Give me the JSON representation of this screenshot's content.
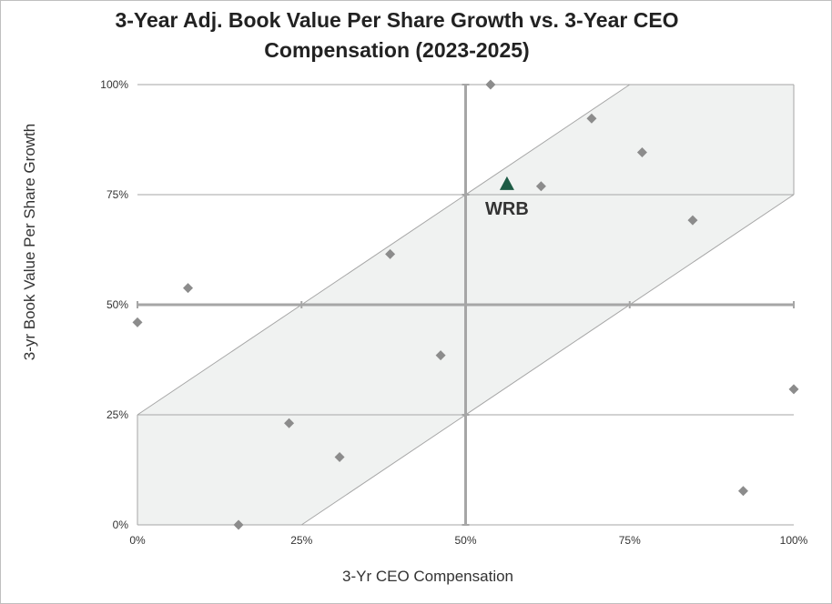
{
  "chart_data": {
    "type": "scatter",
    "title": "3-Year Adj. Book Value Per Share Growth vs. 3-Year CEO Compensation (2023-2025)",
    "xlabel": "3-Yr CEO Compensation",
    "ylabel": "3-yr Book Value Per Share Growth",
    "xlim": [
      0,
      100
    ],
    "ylim": [
      0,
      100
    ],
    "x_ticks": [
      "0%",
      "25%",
      "50%",
      "75%",
      "100%"
    ],
    "y_ticks": [
      "0%",
      "25%",
      "50%",
      "75%",
      "100%"
    ],
    "x_tick_values": [
      0,
      25,
      50,
      75,
      100
    ],
    "y_tick_values": [
      0,
      25,
      50,
      75,
      100
    ],
    "band": {
      "lower_offset": -25,
      "upper_offset": 25
    },
    "peer_points": [
      {
        "x": 0,
        "y": 46
      },
      {
        "x": 7.7,
        "y": 53.8
      },
      {
        "x": 15.4,
        "y": 0
      },
      {
        "x": 23.1,
        "y": 23.1
      },
      {
        "x": 30.8,
        "y": 15.4
      },
      {
        "x": 38.5,
        "y": 61.5
      },
      {
        "x": 46.2,
        "y": 38.5
      },
      {
        "x": 53.8,
        "y": 100
      },
      {
        "x": 61.5,
        "y": 76.9
      },
      {
        "x": 69.2,
        "y": 92.3
      },
      {
        "x": 76.9,
        "y": 84.6
      },
      {
        "x": 84.6,
        "y": 69.2
      },
      {
        "x": 92.3,
        "y": 7.7
      },
      {
        "x": 100,
        "y": 30.8
      }
    ],
    "highlight": {
      "label": "WRB",
      "x": 56.3,
      "y": 77.5
    }
  },
  "colors": {
    "band_fill": "#f0f2f1",
    "band_line": "#a6a6a6",
    "gridline": "#a6a6a6",
    "axis_cross": "#a6a6a6",
    "peer_marker": "#8c8c8c",
    "highlight_marker": "#1d5b45"
  }
}
